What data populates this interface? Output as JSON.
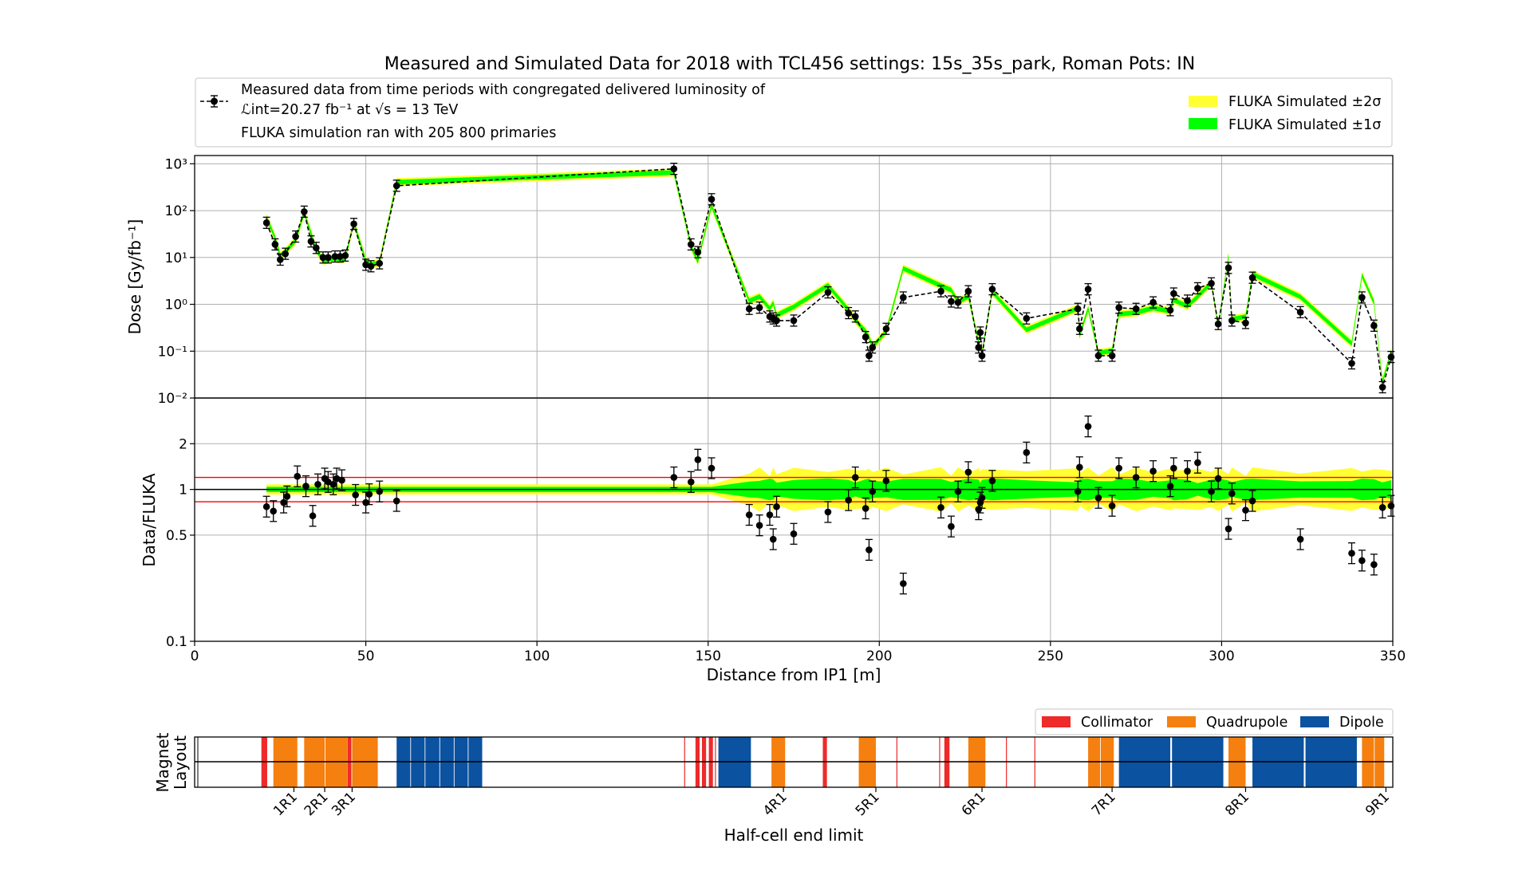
{
  "colors": {
    "sigma2": "#ffff33",
    "sigma1": "#00ff00",
    "sim_line": "#b5e61d",
    "data": "#000000",
    "ratio_band": "#ff0000",
    "collimator": "#ee2a2a",
    "quadrupole": "#f57f0f",
    "dipole": "#0b52a0"
  },
  "chart_data": [
    {
      "type": "line",
      "panel": "dose",
      "title": "Measured and Simulated Data for 2018 with TCL456 settings: 15s_35s_park, Roman Pots: IN",
      "ylabel": "Dose [Gy/fb⁻¹]",
      "ylim": [
        0.01,
        1500
      ],
      "yscale": "log",
      "yticks": [
        {
          "v": 1000,
          "label": "10³"
        },
        {
          "v": 100,
          "label": "10²"
        },
        {
          "v": 10,
          "label": "10¹"
        },
        {
          "v": 1,
          "label": "10⁰"
        },
        {
          "v": 0.1,
          "label": "10⁻¹"
        },
        {
          "v": 0.01,
          "label": "10⁻²"
        }
      ],
      "xlim": [
        0,
        350
      ],
      "grid": true,
      "legend": {
        "data_label_line1": "Measured data from time periods with congregated delivered luminosity of",
        "data_label_line2": "ℒint=20.27 fb⁻¹ at √s = 13 TeV",
        "data_label_line3": "FLUKA simulation ran with 205 800 primaries",
        "sigma2_label": "FLUKA Simulated ±2σ",
        "sigma1_label": "FLUKA Simulated ±1σ"
      },
      "series": [
        {
          "name": "Measured",
          "points": [
            [
              21,
              55
            ],
            [
              23.5,
              19
            ],
            [
              25,
              9
            ],
            [
              26.5,
              12
            ],
            [
              29.5,
              28
            ],
            [
              32,
              95
            ],
            [
              34,
              22
            ],
            [
              35.5,
              16
            ],
            [
              37.5,
              10
            ],
            [
              39,
              10
            ],
            [
              41,
              10.5
            ],
            [
              42.5,
              10.5
            ],
            [
              44,
              11
            ],
            [
              46.5,
              52
            ],
            [
              50,
              7
            ],
            [
              51.5,
              6.5
            ],
            [
              54,
              7.5
            ],
            [
              59,
              340
            ],
            [
              140,
              780
            ],
            [
              145,
              19
            ],
            [
              147,
              13
            ],
            [
              151,
              175
            ],
            [
              162,
              0.8
            ],
            [
              165,
              0.85
            ],
            [
              168,
              0.55
            ],
            [
              169,
              0.5
            ],
            [
              170,
              0.45
            ],
            [
              175,
              0.45
            ],
            [
              185,
              1.8
            ],
            [
              191,
              0.65
            ],
            [
              193,
              0.55
            ],
            [
              196,
              0.2
            ],
            [
              197,
              0.08
            ],
            [
              198,
              0.12
            ],
            [
              202,
              0.3
            ],
            [
              207,
              1.4
            ],
            [
              218,
              1.9
            ],
            [
              221,
              1.15
            ],
            [
              223,
              1.1
            ],
            [
              226,
              1.9
            ],
            [
              229,
              0.12
            ],
            [
              229.5,
              0.25
            ],
            [
              230,
              0.08
            ],
            [
              233,
              2.1
            ],
            [
              243,
              0.5
            ],
            [
              258,
              0.8
            ],
            [
              258.5,
              0.3
            ],
            [
              261,
              2.1
            ],
            [
              264,
              0.08
            ],
            [
              268,
              0.08
            ],
            [
              270,
              0.85
            ],
            [
              275,
              0.8
            ],
            [
              280,
              1.1
            ],
            [
              285,
              0.75
            ],
            [
              286,
              1.7
            ],
            [
              290,
              1.2
            ],
            [
              293,
              2.2
            ],
            [
              297,
              2.8
            ],
            [
              299,
              0.38
            ],
            [
              302,
              6
            ],
            [
              303,
              0.45
            ],
            [
              307,
              0.4
            ],
            [
              309,
              3.7
            ],
            [
              323,
              0.68
            ],
            [
              338,
              0.055
            ],
            [
              341,
              1.4
            ],
            [
              344.5,
              0.35
            ],
            [
              347,
              0.017
            ],
            [
              349.5,
              0.075
            ]
          ]
        }
      ]
    },
    {
      "type": "scatter",
      "panel": "ratio",
      "ylabel": "Data/FLUKA",
      "xlabel": "Distance from IP1 [m]",
      "ylim": [
        0.1,
        4
      ],
      "yscale": "log",
      "yticks": [
        {
          "v": 2,
          "label": "2"
        },
        {
          "v": 1,
          "label": "1"
        },
        {
          "v": 0.5,
          "label": "0.5"
        },
        {
          "v": 0.1,
          "label": "0.1"
        }
      ],
      "xlim": [
        0,
        350
      ],
      "xticks": [
        0,
        50,
        100,
        150,
        200,
        250,
        300,
        350
      ],
      "reference_lines": [
        1.2,
        1.0,
        0.83
      ],
      "series": [
        {
          "name": "Ratio",
          "points": [
            [
              21,
              0.77
            ],
            [
              23,
              0.72
            ],
            [
              26,
              0.82
            ],
            [
              27,
              0.9
            ],
            [
              30,
              1.22
            ],
            [
              32.5,
              1.05
            ],
            [
              34.5,
              0.67
            ],
            [
              36,
              1.08
            ],
            [
              38,
              1.18
            ],
            [
              39,
              1.12
            ],
            [
              40.5,
              1.08
            ],
            [
              41.5,
              1.18
            ],
            [
              43,
              1.15
            ],
            [
              47,
              0.92
            ],
            [
              50,
              0.82
            ],
            [
              51,
              0.93
            ],
            [
              54,
              0.97
            ],
            [
              59,
              0.84
            ],
            [
              140,
              1.2
            ],
            [
              145,
              1.12
            ],
            [
              147,
              1.57
            ],
            [
              151,
              1.38
            ],
            [
              162,
              0.68
            ],
            [
              165,
              0.58
            ],
            [
              168,
              0.68
            ],
            [
              169,
              0.47
            ],
            [
              170,
              0.77
            ],
            [
              175,
              0.51
            ],
            [
              185,
              0.71
            ],
            [
              191,
              0.85
            ],
            [
              193,
              1.2
            ],
            [
              196,
              0.75
            ],
            [
              197,
              0.4
            ],
            [
              198,
              0.97
            ],
            [
              202,
              1.14
            ],
            [
              207,
              0.24
            ],
            [
              218,
              0.76
            ],
            [
              221,
              0.57
            ],
            [
              223,
              0.97
            ],
            [
              226,
              1.3
            ],
            [
              229,
              0.74
            ],
            [
              229.5,
              0.82
            ],
            [
              230,
              0.88
            ],
            [
              233,
              1.14
            ],
            [
              243,
              1.75
            ],
            [
              258,
              0.97
            ],
            [
              258.5,
              1.4
            ],
            [
              261,
              2.6
            ],
            [
              264,
              0.88
            ],
            [
              268,
              0.78
            ],
            [
              270,
              1.38
            ],
            [
              275,
              1.2
            ],
            [
              280,
              1.32
            ],
            [
              285,
              1.05
            ],
            [
              286,
              1.38
            ],
            [
              290,
              1.32
            ],
            [
              293,
              1.5
            ],
            [
              297,
              0.97
            ],
            [
              299,
              1.18
            ],
            [
              302,
              0.55
            ],
            [
              303,
              0.94
            ],
            [
              307,
              0.73
            ],
            [
              309,
              0.84
            ],
            [
              323,
              0.47
            ],
            [
              338,
              0.38
            ],
            [
              341,
              0.34
            ],
            [
              344.5,
              0.32
            ],
            [
              347,
              0.76
            ],
            [
              349.5,
              0.78
            ]
          ]
        }
      ]
    },
    {
      "type": "bar",
      "panel": "magnet-layout",
      "ylabel_line1": "Magnet",
      "ylabel_line2": "Layout",
      "xlabel": "Half-cell end limit",
      "xlim": [
        0,
        350
      ],
      "legend": [
        "Collimator",
        "Quadrupole",
        "Dipole"
      ],
      "half_cell_labels": [
        {
          "x": 29,
          "label": "1R1"
        },
        {
          "x": 38,
          "label": "2R1"
        },
        {
          "x": 46,
          "label": "3R1"
        },
        {
          "x": 172,
          "label": "4R1"
        },
        {
          "x": 199,
          "label": "5R1"
        },
        {
          "x": 230,
          "label": "6R1"
        },
        {
          "x": 268,
          "label": "7R1"
        },
        {
          "x": 307,
          "label": "8R1"
        },
        {
          "x": 348,
          "label": "9R1"
        }
      ],
      "elements": [
        {
          "type": "Collimator",
          "x0": 19.5,
          "x1": 21.2
        },
        {
          "type": "Quadrupole",
          "x0": 23,
          "x1": 30
        },
        {
          "type": "Quadrupole",
          "x0": 32,
          "x1": 38
        },
        {
          "type": "Quadrupole",
          "x0": 38.2,
          "x1": 44.5
        },
        {
          "type": "Collimator",
          "x0": 44.6,
          "x1": 45.8
        },
        {
          "type": "Quadrupole",
          "x0": 46,
          "x1": 53.5
        },
        {
          "type": "Dipole",
          "x0": 59,
          "x1": 63
        },
        {
          "type": "Dipole",
          "x0": 63.2,
          "x1": 67.2
        },
        {
          "type": "Dipole",
          "x0": 67.4,
          "x1": 71.5
        },
        {
          "type": "Dipole",
          "x0": 71.7,
          "x1": 75.7
        },
        {
          "type": "Dipole",
          "x0": 75.9,
          "x1": 79.8
        },
        {
          "type": "Dipole",
          "x0": 80,
          "x1": 84
        },
        {
          "type": "Collimator",
          "x0": 143,
          "x1": 143.4
        },
        {
          "type": "Collimator",
          "x0": 146.3,
          "x1": 147.5
        },
        {
          "type": "Collimator",
          "x0": 148.2,
          "x1": 149.4
        },
        {
          "type": "Collimator",
          "x0": 150.2,
          "x1": 151.4
        },
        {
          "type": "Collimator",
          "x0": 152,
          "x1": 152.4
        },
        {
          "type": "Dipole",
          "x0": 153,
          "x1": 162.5
        },
        {
          "type": "Quadrupole",
          "x0": 168.5,
          "x1": 172.5
        },
        {
          "type": "Collimator",
          "x0": 183.5,
          "x1": 184.7
        },
        {
          "type": "Quadrupole",
          "x0": 194,
          "x1": 199
        },
        {
          "type": "Collimator",
          "x0": 205,
          "x1": 205.4
        },
        {
          "type": "Collimator",
          "x0": 217.5,
          "x1": 217.9
        },
        {
          "type": "Collimator",
          "x0": 219,
          "x1": 220.5
        },
        {
          "type": "Quadrupole",
          "x0": 226,
          "x1": 231
        },
        {
          "type": "Collimator",
          "x0": 237,
          "x1": 237.4
        },
        {
          "type": "Collimator",
          "x0": 245.3,
          "x1": 245.7
        },
        {
          "type": "Quadrupole",
          "x0": 261,
          "x1": 264.5
        },
        {
          "type": "Quadrupole",
          "x0": 264.7,
          "x1": 268.5
        },
        {
          "type": "Dipole",
          "x0": 270,
          "x1": 285
        },
        {
          "type": "Dipole",
          "x0": 285.5,
          "x1": 300.5
        },
        {
          "type": "Quadrupole",
          "x0": 302,
          "x1": 307
        },
        {
          "type": "Dipole",
          "x0": 309,
          "x1": 324
        },
        {
          "type": "Dipole",
          "x0": 324.5,
          "x1": 339.5
        },
        {
          "type": "Quadrupole",
          "x0": 341,
          "x1": 344.5
        },
        {
          "type": "Quadrupole",
          "x0": 344.7,
          "x1": 347.5
        }
      ]
    }
  ]
}
